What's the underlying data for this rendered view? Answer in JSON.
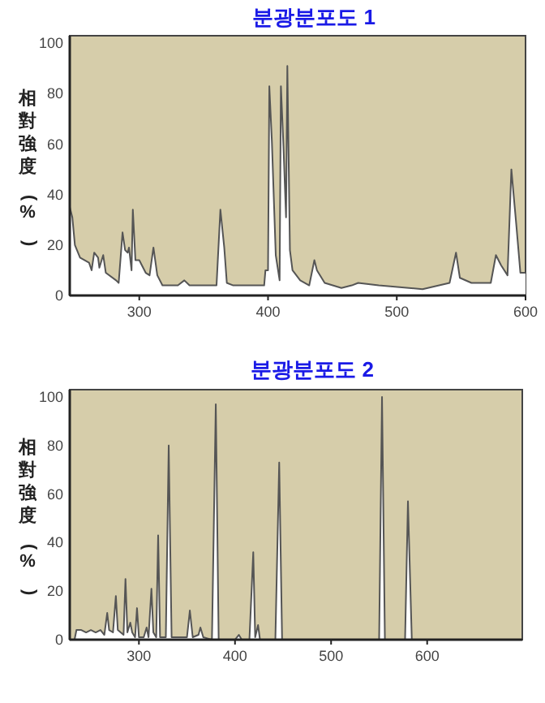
{
  "chart_data": [
    {
      "type": "area",
      "title": "분광분포도 1",
      "ylabel": "相對強度(%)",
      "xlim": [
        246,
        600
      ],
      "ylim": [
        0,
        103
      ],
      "xticks": [
        300,
        400,
        500,
        600
      ],
      "yticks": [
        0,
        20,
        40,
        60,
        80,
        100
      ],
      "grid": false,
      "x": [
        246,
        248,
        250,
        254,
        261,
        263,
        265,
        268,
        269,
        272,
        274,
        282,
        284,
        287,
        289,
        291,
        292,
        294,
        295,
        297,
        300,
        302,
        305,
        308,
        311,
        314,
        318,
        330,
        335,
        339,
        360,
        363,
        366,
        368,
        373,
        397,
        398,
        400,
        401,
        403,
        406,
        409,
        410,
        412,
        414,
        415,
        417,
        419,
        425,
        432,
        436,
        438,
        444,
        457,
        465,
        470,
        486,
        520,
        541,
        546,
        549,
        558,
        573,
        577,
        581,
        586,
        589,
        593,
        596,
        600
      ],
      "series": [
        {
          "color": "#ffffff",
          "values": [
            35,
            31,
            20,
            15,
            13,
            10,
            17,
            15,
            11,
            16,
            9,
            6,
            5,
            25,
            18,
            17,
            19,
            10,
            34,
            14,
            14,
            12,
            9,
            8,
            19,
            8,
            4,
            4,
            6,
            4,
            4,
            34,
            19,
            5,
            4,
            4,
            10,
            10,
            83,
            61,
            16,
            6,
            83,
            59,
            31,
            91,
            18,
            10,
            6,
            4,
            14,
            10,
            5,
            3,
            4,
            5,
            4,
            2.5,
            5,
            17,
            7,
            5,
            5,
            16,
            12,
            8,
            50,
            27,
            9,
            9
          ]
        }
      ]
    },
    {
      "type": "area",
      "title": "분광분포도 2",
      "ylabel": "相對強度(%)",
      "xlim": [
        228,
        699
      ],
      "ylim": [
        0,
        103
      ],
      "xticks": [
        300,
        400,
        500,
        600
      ],
      "yticks": [
        0,
        20,
        40,
        60,
        80,
        100
      ],
      "grid": false,
      "x": [
        233,
        235,
        240,
        245,
        250,
        255,
        260,
        264,
        267,
        269,
        273,
        276,
        278,
        281,
        284,
        286,
        288,
        291,
        293,
        296,
        298,
        300,
        305,
        308,
        310,
        313,
        315,
        318,
        320,
        322,
        328,
        331,
        334,
        345,
        350,
        353,
        356,
        362,
        364,
        367,
        376,
        380,
        383,
        400,
        404,
        407,
        415,
        419,
        421,
        424,
        426,
        442,
        446,
        449,
        550,
        553,
        556,
        577,
        580,
        584,
        600
      ],
      "series": [
        {
          "color": "#ffffff",
          "values": [
            0,
            4,
            4,
            3,
            4,
            3,
            4,
            2,
            11,
            4,
            3,
            18,
            4,
            3,
            2,
            25,
            3,
            7,
            3,
            1,
            13,
            1,
            1,
            5,
            1,
            21,
            3,
            1,
            43,
            1,
            1,
            80,
            1,
            1,
            1,
            12,
            1,
            2,
            5,
            1,
            0,
            97,
            0,
            0,
            2,
            0,
            0,
            36,
            1,
            6,
            0,
            0,
            73,
            0,
            0,
            100,
            0,
            0,
            57,
            0,
            0
          ]
        }
      ]
    }
  ]
}
